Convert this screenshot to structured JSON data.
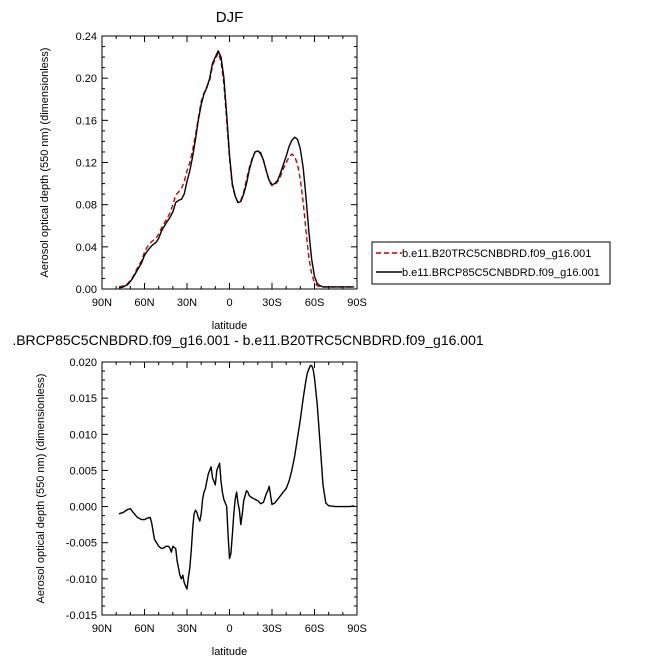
{
  "chart_data": [
    {
      "type": "line",
      "title": "DJF",
      "xlabel": "latitude",
      "ylabel": "Aerosol optical depth (550 nm) (dimensionless)",
      "xlim": [
        -90,
        90
      ],
      "ylim": [
        0,
        0.24
      ],
      "x_tick_values": [
        -90,
        -60,
        -30,
        0,
        30,
        60,
        90
      ],
      "x_tick_labels": [
        "90N",
        "60N",
        "30N",
        "0",
        "30S",
        "60S",
        "90S"
      ],
      "y_tick_values": [
        0,
        0.04,
        0.08,
        0.12,
        0.16,
        0.2,
        0.24
      ],
      "y_tick_labels": [
        "0.00",
        "0.04",
        "0.08",
        "0.12",
        "0.16",
        "0.20",
        "0.24"
      ],
      "legend_position": "right",
      "series": [
        {
          "name": "b.e11.B20TRC5CNBDRD.f09_g16.001",
          "color": "#cc0000",
          "dash": "dashed",
          "x": [
            -78,
            -75,
            -72,
            -70,
            -68,
            -65,
            -62,
            -60,
            -58,
            -55,
            -52,
            -50,
            -48,
            -45,
            -42,
            -40,
            -38,
            -36,
            -34,
            -32,
            -30,
            -28,
            -26,
            -24,
            -22,
            -20,
            -18,
            -16,
            -14,
            -12,
            -10,
            -8,
            -6,
            -4,
            -2,
            0,
            2,
            4,
            6,
            8,
            10,
            12,
            14,
            16,
            18,
            20,
            22,
            24,
            26,
            28,
            30,
            32,
            34,
            36,
            38,
            40,
            42,
            44,
            46,
            48,
            50,
            52,
            54,
            56,
            58,
            60,
            62,
            64,
            66,
            68,
            70,
            75,
            80,
            85,
            88
          ],
          "y": [
            0.002,
            0.003,
            0.005,
            0.008,
            0.012,
            0.02,
            0.027,
            0.035,
            0.04,
            0.045,
            0.048,
            0.052,
            0.058,
            0.065,
            0.072,
            0.08,
            0.089,
            0.092,
            0.095,
            0.102,
            0.112,
            0.12,
            0.132,
            0.146,
            0.162,
            0.178,
            0.186,
            0.192,
            0.198,
            0.212,
            0.218,
            0.224,
            0.216,
            0.195,
            0.16,
            0.124,
            0.098,
            0.088,
            0.082,
            0.084,
            0.092,
            0.104,
            0.115,
            0.124,
            0.13,
            0.131,
            0.128,
            0.122,
            0.112,
            0.102,
            0.098,
            0.099,
            0.102,
            0.107,
            0.114,
            0.12,
            0.125,
            0.128,
            0.126,
            0.118,
            0.104,
            0.082,
            0.055,
            0.03,
            0.014,
            0.006,
            0.003,
            0.002,
            0.002,
            0.002,
            0.002,
            0.002,
            0.002,
            0.002,
            0.002
          ]
        },
        {
          "name": "b.e11.BRCP85C5CNBDRD.f09_g16.001",
          "color": "#000000",
          "dash": "solid",
          "x": [
            -78,
            -75,
            -72,
            -70,
            -68,
            -65,
            -62,
            -60,
            -58,
            -55,
            -52,
            -50,
            -48,
            -45,
            -42,
            -40,
            -38,
            -36,
            -34,
            -32,
            -30,
            -28,
            -26,
            -24,
            -22,
            -20,
            -18,
            -16,
            -14,
            -12,
            -10,
            -8,
            -6,
            -4,
            -2,
            0,
            2,
            4,
            6,
            8,
            10,
            12,
            14,
            16,
            18,
            20,
            22,
            24,
            26,
            28,
            30,
            32,
            34,
            36,
            38,
            40,
            42,
            44,
            46,
            48,
            50,
            52,
            54,
            56,
            58,
            60,
            62,
            64,
            66,
            68,
            70,
            75,
            80,
            85,
            88
          ],
          "y": [
            0.001,
            0.002,
            0.004,
            0.007,
            0.011,
            0.018,
            0.025,
            0.032,
            0.036,
            0.041,
            0.044,
            0.048,
            0.055,
            0.062,
            0.068,
            0.073,
            0.082,
            0.084,
            0.085,
            0.09,
            0.102,
            0.112,
            0.126,
            0.142,
            0.16,
            0.175,
            0.185,
            0.191,
            0.2,
            0.214,
            0.22,
            0.226,
            0.22,
            0.201,
            0.165,
            0.127,
            0.1,
            0.088,
            0.082,
            0.083,
            0.09,
            0.1,
            0.113,
            0.123,
            0.13,
            0.131,
            0.129,
            0.122,
            0.112,
            0.103,
            0.099,
            0.1,
            0.103,
            0.11,
            0.118,
            0.126,
            0.135,
            0.141,
            0.144,
            0.142,
            0.133,
            0.115,
            0.087,
            0.055,
            0.028,
            0.012,
            0.005,
            0.003,
            0.002,
            0.002,
            0.002,
            0.002,
            0.002,
            0.002,
            0.002
          ]
        }
      ]
    },
    {
      "type": "line",
      "title": ".BRCP85C5CNBDRD.f09_g16.001 - b.e11.B20TRC5CNBDRD.f09_g16.001",
      "xlabel": "latitude",
      "ylabel": "Aerosol optical depth (550 nm) (dimensionless)",
      "xlim": [
        -90,
        90
      ],
      "ylim": [
        -0.015,
        0.02
      ],
      "x_tick_values": [
        -90,
        -60,
        -30,
        0,
        30,
        60,
        90
      ],
      "x_tick_labels": [
        "90N",
        "60N",
        "30N",
        "0",
        "30S",
        "60S",
        "90S"
      ],
      "y_tick_values": [
        -0.015,
        -0.01,
        -0.005,
        0,
        0.005,
        0.01,
        0.015,
        0.02
      ],
      "y_tick_labels": [
        "-0.015",
        "-0.010",
        "-0.005",
        "0.000",
        "0.005",
        "0.010",
        "0.015",
        "0.020"
      ],
      "series": [
        {
          "color": "#000000",
          "dash": "solid",
          "x": [
            -78,
            -75,
            -72,
            -70,
            -68,
            -65,
            -62,
            -60,
            -58,
            -56,
            -55,
            -53,
            -50,
            -48,
            -46,
            -45,
            -43,
            -42,
            -41,
            -40,
            -38,
            -37,
            -36,
            -35,
            -34,
            -33,
            -32,
            -31,
            -30,
            -29,
            -28,
            -27,
            -26,
            -25,
            -24,
            -23,
            -22,
            -21,
            -20,
            -19,
            -18,
            -17,
            -16,
            -15,
            -14,
            -13,
            -12,
            -11,
            -10,
            -9,
            -8,
            -7,
            -6,
            -5,
            -4,
            -3,
            -2,
            -1,
            0,
            1,
            2,
            3,
            4,
            5,
            6,
            7,
            8,
            9,
            10,
            11,
            12,
            13,
            14,
            16,
            18,
            20,
            22,
            24,
            25,
            26,
            27,
            28,
            29,
            30,
            32,
            34,
            36,
            38,
            40,
            42,
            44,
            46,
            48,
            50,
            52,
            54,
            55,
            56,
            57,
            58,
            59,
            60,
            62,
            64,
            66,
            68,
            70,
            75,
            80,
            85,
            88
          ],
          "y": [
            -0.001,
            -0.0008,
            -0.0004,
            -0.0003,
            -0.0008,
            -0.0015,
            -0.0018,
            -0.0018,
            -0.0016,
            -0.0015,
            -0.0022,
            -0.0045,
            -0.0055,
            -0.0058,
            -0.0057,
            -0.0055,
            -0.0055,
            -0.0058,
            -0.0063,
            -0.0055,
            -0.0058,
            -0.0075,
            -0.0085,
            -0.0095,
            -0.01,
            -0.0095,
            -0.0105,
            -0.011,
            -0.0114,
            -0.0098,
            -0.0085,
            -0.006,
            -0.003,
            -0.001,
            -0.0005,
            -0.0008,
            -0.0015,
            -0.002,
            -0.001,
            0.001,
            0.002,
            0.0025,
            0.0035,
            0.0045,
            0.005,
            0.0055,
            0.004,
            0.0035,
            0.003,
            0.005,
            0.0055,
            0.006,
            0.0035,
            0.002,
            0.001,
            0.0005,
            0.0,
            -0.004,
            -0.0072,
            -0.0065,
            -0.004,
            -0.001,
            0.001,
            0.002,
            0.0005,
            -0.0005,
            -0.0025,
            -0.001,
            0.0008,
            0.0015,
            0.0022,
            0.002,
            0.0015,
            0.0012,
            0.001,
            0.0008,
            0.0004,
            0.0006,
            0.0012,
            0.0018,
            0.0022,
            0.0028,
            0.0015,
            0.0003,
            0.0005,
            0.001,
            0.0015,
            0.002,
            0.0025,
            0.0035,
            0.005,
            0.007,
            0.0095,
            0.012,
            0.015,
            0.0175,
            0.0185,
            0.019,
            0.0195,
            0.0195,
            0.019,
            0.0178,
            0.014,
            0.0085,
            0.003,
            0.0005,
            0.0001,
            0.0,
            0.0,
            0.0,
            0.0001
          ]
        }
      ]
    }
  ]
}
